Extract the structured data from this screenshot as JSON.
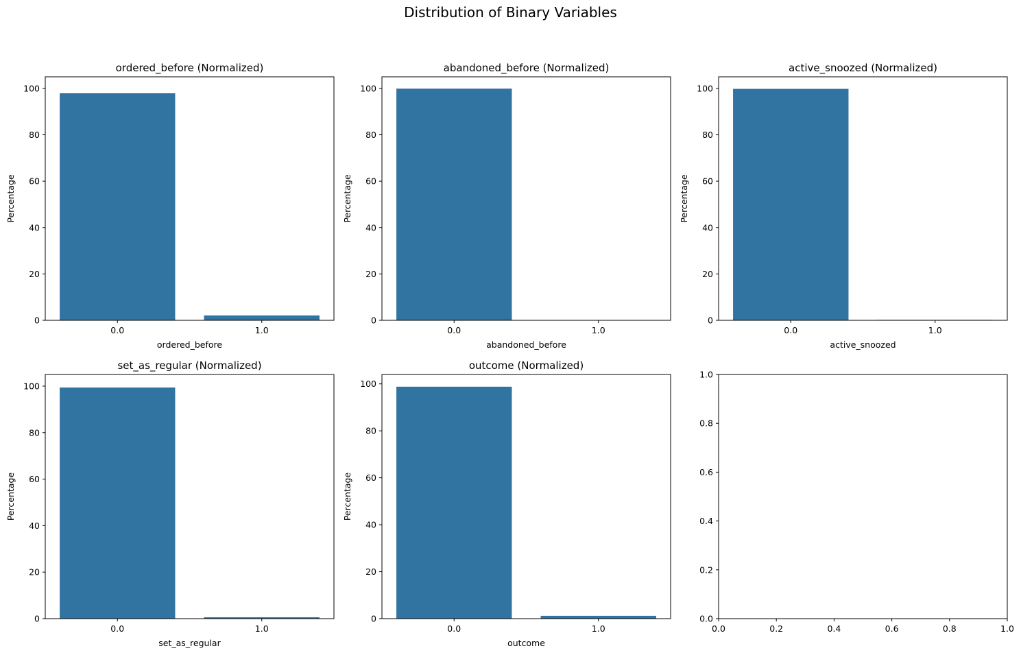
{
  "figure": {
    "suptitle": "Distribution of Binary Variables",
    "bar_color": "#3274a1"
  },
  "chart_data": [
    {
      "type": "bar",
      "title": "ordered_before (Normalized)",
      "xlabel": "ordered_before",
      "ylabel": "Percentage",
      "categories": [
        "0.0",
        "1.0"
      ],
      "values": [
        97.9,
        2.1
      ],
      "ylim": [
        0,
        105
      ],
      "yticks": [
        "0",
        "20",
        "40",
        "60",
        "80",
        "100"
      ],
      "grid": false
    },
    {
      "type": "bar",
      "title": "abandoned_before (Normalized)",
      "xlabel": "abandoned_before",
      "ylabel": "Percentage",
      "categories": [
        "0.0",
        "1.0"
      ],
      "values": [
        99.9,
        0.1
      ],
      "ylim": [
        0,
        105
      ],
      "yticks": [
        "0",
        "20",
        "40",
        "60",
        "80",
        "100"
      ],
      "grid": false
    },
    {
      "type": "bar",
      "title": "active_snoozed (Normalized)",
      "xlabel": "active_snoozed",
      "ylabel": "Percentage",
      "categories": [
        "0.0",
        "1.0"
      ],
      "values": [
        99.8,
        0.2
      ],
      "ylim": [
        0,
        105
      ],
      "yticks": [
        "0",
        "20",
        "40",
        "60",
        "80",
        "100"
      ],
      "grid": false
    },
    {
      "type": "bar",
      "title": "set_as_regular (Normalized)",
      "xlabel": "set_as_regular",
      "ylabel": "Percentage",
      "categories": [
        "0.0",
        "1.0"
      ],
      "values": [
        99.4,
        0.6
      ],
      "ylim": [
        0,
        105
      ],
      "yticks": [
        "0",
        "20",
        "40",
        "60",
        "80",
        "100"
      ],
      "grid": false
    },
    {
      "type": "bar",
      "title": "outcome (Normalized)",
      "xlabel": "outcome",
      "ylabel": "Percentage",
      "categories": [
        "0.0",
        "1.0"
      ],
      "values": [
        98.8,
        1.2
      ],
      "ylim": [
        0,
        104
      ],
      "yticks": [
        "0",
        "20",
        "40",
        "60",
        "80",
        "100"
      ],
      "grid": false
    },
    {
      "type": "empty",
      "title": "",
      "xlabel": "",
      "ylabel": "",
      "xlim": [
        0,
        1
      ],
      "ylim": [
        0,
        1
      ],
      "xticks": [
        "0.0",
        "0.2",
        "0.4",
        "0.6",
        "0.8",
        "1.0"
      ],
      "yticks": [
        "0.0",
        "0.2",
        "0.4",
        "0.6",
        "0.8",
        "1.0"
      ]
    }
  ]
}
